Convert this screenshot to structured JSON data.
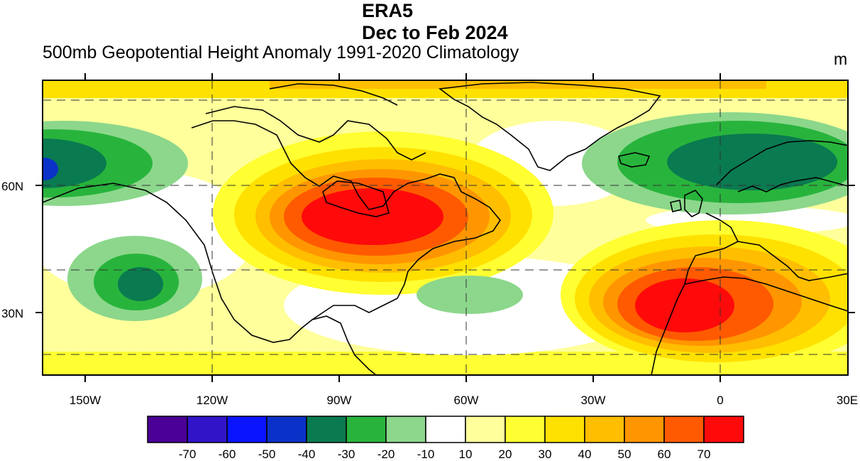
{
  "header": {
    "title_line1": "ERA5",
    "title_line2": "Dec to Feb 2024",
    "subtitle": "500mb Geopotential Height Anomaly  1991-2020 Climatology",
    "units": "m"
  },
  "map": {
    "projection": "cylindrical equidistant",
    "lon_range": [
      -160,
      30
    ],
    "lat_range": [
      15,
      85
    ],
    "lon_ticks": [
      "150W",
      "120W",
      "90W",
      "60W",
      "30W",
      "0",
      "30E"
    ],
    "lat_ticks": [
      "30N",
      "60N"
    ],
    "grid": "dashed, 30° longitude / 20° latitude",
    "regions": [
      {
        "region": "Alaska / Bering Sea",
        "anomaly": "-40"
      },
      {
        "region": "Northeast Pacific",
        "anomaly": "-30"
      },
      {
        "region": "Central Canada / Hudson Bay",
        "anomaly": "70"
      },
      {
        "region": "Western Atlantic",
        "anomaly": "-20"
      },
      {
        "region": "Northern Europe / Scandinavia",
        "anomaly": "-40"
      },
      {
        "region": "Northwest Africa / Iberia",
        "anomaly": "70"
      },
      {
        "region": "Arctic / Greenland",
        "anomaly": "10 to 40"
      }
    ]
  },
  "colorbar": {
    "labels": [
      "-70",
      "-60",
      "-50",
      "-40",
      "-30",
      "-20",
      "-10",
      "10",
      "20",
      "30",
      "40",
      "50",
      "60",
      "70"
    ],
    "colors": [
      "#4B0096",
      "#3214C8",
      "#0A14FF",
      "#0A32C8",
      "#0A7A50",
      "#28B43C",
      "#8CD78C",
      "#FFFFFF",
      "#FFFF9B",
      "#FFFF32",
      "#FFE100",
      "#FFBE00",
      "#FF9600",
      "#FF5A00",
      "#FF0A0A"
    ]
  }
}
